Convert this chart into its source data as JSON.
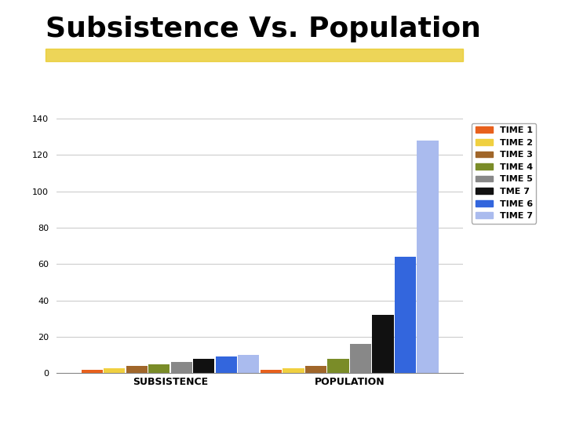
{
  "title": "Subsistence Vs. Population",
  "categories": [
    "SUBSISTENCE",
    "POPULATION"
  ],
  "series": [
    {
      "label": "TIME 1",
      "color": "#E8601C",
      "values": [
        2,
        2
      ]
    },
    {
      "label": "TIME 2",
      "color": "#F0D040",
      "values": [
        2.5,
        2.5
      ]
    },
    {
      "label": "TIME 3",
      "color": "#A0662A",
      "values": [
        4,
        4
      ]
    },
    {
      "label": "TIME 4",
      "color": "#7A8C28",
      "values": [
        5,
        8
      ]
    },
    {
      "label": "TIME 5",
      "color": "#888888",
      "values": [
        6,
        16
      ]
    },
    {
      "label": "TME 7",
      "color": "#111111",
      "values": [
        8,
        32
      ]
    },
    {
      "label": "TIME 6",
      "color": "#3366DD",
      "values": [
        9,
        64
      ]
    },
    {
      "label": "TIME 7",
      "color": "#AABBEE",
      "values": [
        10,
        128
      ]
    }
  ],
  "ylim": [
    0,
    140
  ],
  "yticks": [
    0,
    20,
    40,
    60,
    80,
    100,
    120,
    140
  ],
  "bar_width": 0.055,
  "cat_centers": [
    0.28,
    0.72
  ],
  "background_color": "#FFFFFF",
  "title_fontsize": 26,
  "title_fontweight": "bold",
  "axis_label_fontsize": 8,
  "legend_fontsize": 8,
  "highlight_color": "#E8C820",
  "highlight_alpha": 0.75,
  "xlim": [
    0.0,
    1.0
  ]
}
